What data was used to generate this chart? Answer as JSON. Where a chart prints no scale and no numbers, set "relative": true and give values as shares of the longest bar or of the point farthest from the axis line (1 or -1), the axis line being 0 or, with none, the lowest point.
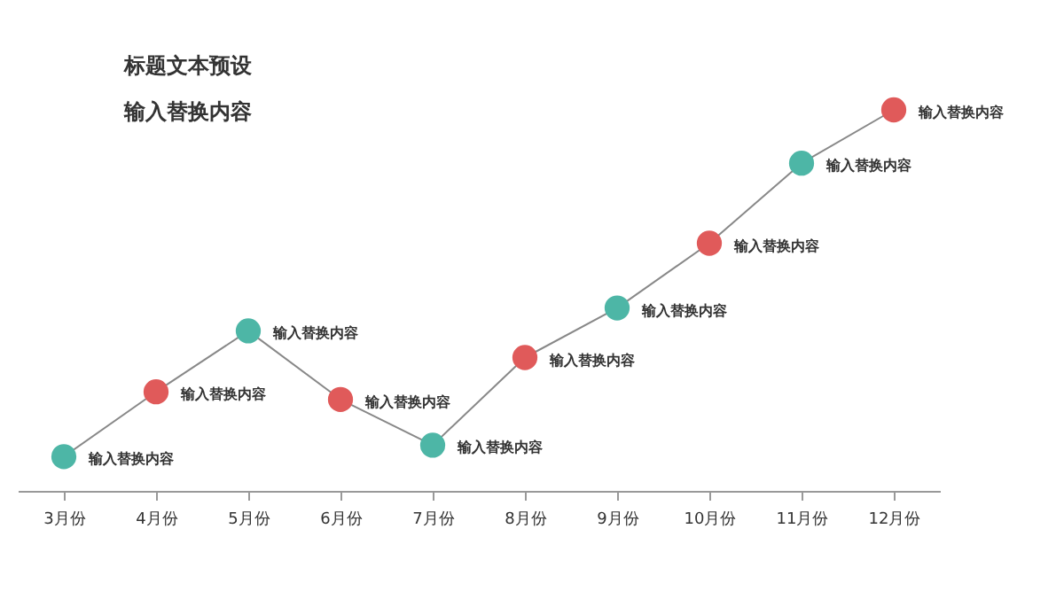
{
  "chart_data": {
    "type": "line",
    "title": "标题文本预设",
    "subtitle": "输入替换内容",
    "relative": true,
    "marker": "circle",
    "grid": false,
    "categories": [
      "3月份",
      "4月份",
      "5月份",
      "6月份",
      "7月份",
      "8月份",
      "9月份",
      "10月份",
      "11月份",
      "12月份"
    ],
    "series": [
      {
        "color": "#888888",
        "colors": [
          "#4db6a6",
          "#e05a5a",
          "#4db6a6",
          "#e05a5a",
          "#4db6a6",
          "#e05a5a",
          "#4db6a6",
          "#e05a5a",
          "#4db6a6",
          "#e05a5a"
        ],
        "values": [
          0.09,
          0.26,
          0.42,
          0.24,
          0.12,
          0.35,
          0.48,
          0.65,
          0.86,
          1
        ]
      }
    ],
    "annotations": [
      {
        "text": "输入替换内容",
        "x": "3月份",
        "y": 0.09
      },
      {
        "text": "输入替换内容",
        "x": "4月份",
        "y": 0.26
      },
      {
        "text": "输入替换内容",
        "x": "5月份",
        "y": 0.42
      },
      {
        "text": "输入替换内容",
        "x": "6月份",
        "y": 0.24
      },
      {
        "text": "输入替换内容",
        "x": "7月份",
        "y": 0.12
      },
      {
        "text": "输入替换内容",
        "x": "8月份",
        "y": 0.35
      },
      {
        "text": "输入替换内容",
        "x": "9月份",
        "y": 0.48
      },
      {
        "text": "输入替换内容",
        "x": "10月份",
        "y": 0.65
      },
      {
        "text": "输入替换内容",
        "x": "11月份",
        "y": 0.86
      },
      {
        "text": "输入替换内容",
        "x": "12月份",
        "y": 1
      }
    ]
  }
}
